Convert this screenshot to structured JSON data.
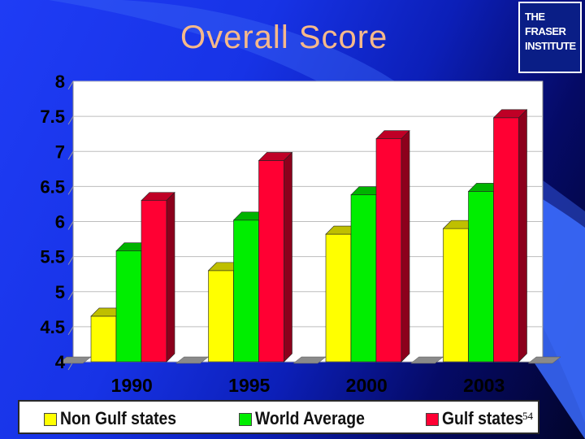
{
  "slide": {
    "title": "Overall Score",
    "logo_text": [
      "THE FRASER",
      "INSTITUTE"
    ],
    "slide_number": "54"
  },
  "colors": {
    "background_light": "#1f3cf5",
    "background_dark": "#02042a",
    "title_text": "#f6b98a",
    "plot_background": "#ffffff",
    "gridline": "#bdbdbd"
  },
  "chart_data": {
    "type": "bar",
    "style": "3d-clustered-column",
    "title": "",
    "xlabel": "",
    "ylabel": "",
    "ylim": [
      4,
      8
    ],
    "yticks": [
      "4",
      "4.5",
      "5",
      "5.5",
      "6",
      "6.5",
      "7",
      "7.5",
      "8"
    ],
    "grid": true,
    "legend_position": "bottom",
    "categories": [
      "1990",
      "1995",
      "2000",
      "2003"
    ],
    "series": [
      {
        "name": "Non Gulf states",
        "color": "#ffff00",
        "values": [
          4.65,
          5.3,
          5.82,
          5.9
        ]
      },
      {
        "name": "World Average",
        "color": "#00ee00",
        "values": [
          5.58,
          6.02,
          6.38,
          6.43
        ]
      },
      {
        "name": "Gulf states",
        "color": "#ff0033",
        "values": [
          6.3,
          6.87,
          7.18,
          7.48
        ]
      }
    ]
  }
}
